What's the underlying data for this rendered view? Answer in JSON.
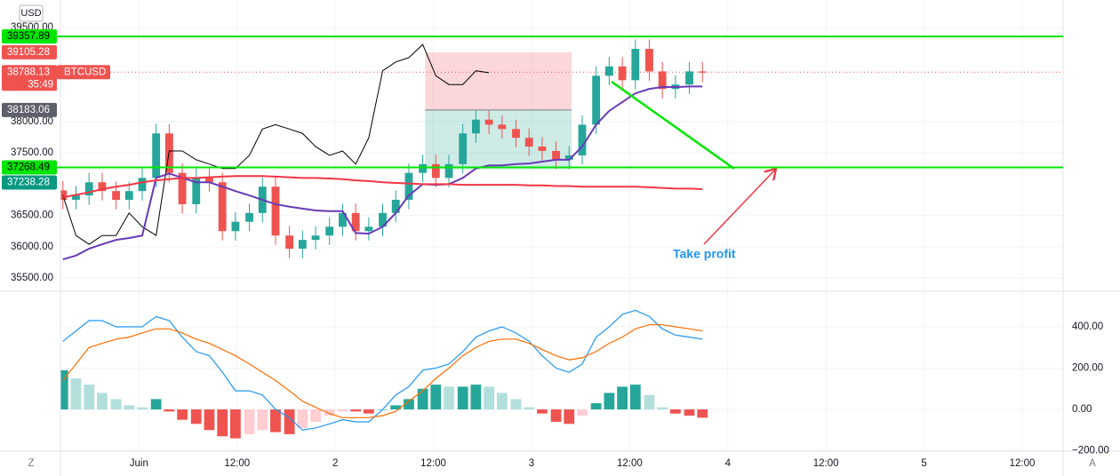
{
  "chart_data": [
    {
      "type": "candlestick",
      "currency_label": "USD",
      "symbol": "BTCUSD",
      "countdown": "35:49",
      "annotation": "Take profit",
      "buttons": [
        "Z",
        "A"
      ],
      "x": [
        -9.3,
        -7.7,
        -6.1,
        -4.5,
        -2.8,
        -1.2,
        0.4,
        2.1,
        3.7,
        5.3,
        7.0,
        8.6,
        10.2,
        11.8,
        13.5,
        15.1,
        16.7,
        18.4,
        20.0,
        21.6,
        23.3,
        24.9,
        26.5,
        28.1,
        29.8,
        31.4,
        33.0,
        34.7,
        36.3,
        37.9,
        39.6,
        41.2,
        42.8,
        44.4,
        46.1,
        47.7,
        49.3,
        51.0,
        52.6,
        54.2,
        55.9,
        57.5,
        59.1,
        60.7,
        62.4,
        64.0,
        65.6,
        67.3,
        68.9
      ],
      "open": [
        36900,
        36750,
        36820,
        37030,
        36890,
        36750,
        36890,
        37100,
        37810,
        37180,
        36680,
        37100,
        37030,
        36250,
        36400,
        36540,
        36960,
        36180,
        35970,
        36110,
        36180,
        36320,
        36540,
        36250,
        36320,
        36540,
        36750,
        37180,
        37320,
        37100,
        37320,
        37810,
        38030,
        37950,
        37880,
        37740,
        37600,
        37530,
        37390,
        37460,
        37950,
        38730,
        38880,
        38660,
        39160,
        38800,
        38520,
        38590,
        38800
      ],
      "high": [
        37050,
        36970,
        37180,
        37180,
        37040,
        37040,
        37250,
        37960,
        37960,
        37330,
        37250,
        37250,
        37180,
        36550,
        36690,
        37110,
        37110,
        36330,
        36260,
        36330,
        36470,
        36690,
        36690,
        36470,
        36690,
        36900,
        37330,
        37470,
        37470,
        37470,
        37960,
        38180,
        38180,
        38100,
        38030,
        37890,
        37750,
        37680,
        37610,
        38100,
        38880,
        39030,
        39030,
        39310,
        39310,
        38950,
        38740,
        38950,
        38950
      ],
      "low": [
        36600,
        36600,
        36670,
        36740,
        36600,
        36600,
        36740,
        36950,
        37030,
        36530,
        36530,
        36880,
        36100,
        36100,
        36250,
        36390,
        36030,
        35820,
        35820,
        35960,
        36030,
        36170,
        36100,
        36100,
        36170,
        36390,
        36600,
        37030,
        36950,
        36950,
        37170,
        37660,
        37800,
        37730,
        37590,
        37450,
        37380,
        37240,
        37240,
        37310,
        37800,
        38580,
        38510,
        38510,
        38650,
        38370,
        38370,
        38440,
        38630
      ],
      "close": [
        36750,
        36820,
        37030,
        36890,
        36750,
        36890,
        37100,
        37810,
        37180,
        36680,
        37100,
        37030,
        36250,
        36400,
        36540,
        36960,
        36180,
        35970,
        36110,
        36180,
        36320,
        36540,
        36250,
        36320,
        36540,
        36750,
        37180,
        37320,
        37100,
        37320,
        37810,
        38030,
        37950,
        37880,
        37740,
        37600,
        37530,
        37390,
        37460,
        37950,
        38730,
        38880,
        38660,
        39160,
        38800,
        38520,
        38590,
        38800,
        38780
      ],
      "up_color": "#26a69a",
      "down_color": "#ef5350",
      "overlays": [
        {
          "color": "#000000",
          "values": [
            36820,
            36180,
            36040,
            36180,
            36180,
            36540,
            36320,
            36180,
            37530,
            37530,
            37390,
            37320,
            37250,
            37250,
            37460,
            37880,
            37950,
            37880,
            37810,
            37600,
            37460,
            37530,
            37320,
            37740,
            38810,
            38950,
            39020,
            39230,
            38730,
            38590,
            38590,
            38810,
            38780,
            null,
            null,
            null,
            null,
            null,
            null,
            null,
            null,
            null,
            null,
            null,
            null,
            null,
            null,
            null,
            null
          ]
        },
        {
          "color": "#673ab7",
          "values": [
            35800,
            35860,
            35970,
            36040,
            36110,
            36140,
            36180,
            37100,
            37170,
            37100,
            37030,
            37030,
            36960,
            36890,
            36820,
            36750,
            36680,
            36640,
            36610,
            36580,
            36570,
            36570,
            36220,
            36210,
            36320,
            36540,
            36820,
            37000,
            36990,
            37000,
            37100,
            37250,
            37300,
            37300,
            37320,
            37330,
            37360,
            37390,
            37390,
            37600,
            37950,
            38170,
            38310,
            38450,
            38520,
            38550,
            38550,
            38560,
            38560
          ]
        },
        {
          "color": "#f23645",
          "values": [
            36790,
            36830,
            36870,
            36920,
            36960,
            36990,
            37030,
            37060,
            37080,
            37100,
            37100,
            37110,
            37120,
            37130,
            37130,
            37130,
            37120,
            37110,
            37100,
            37100,
            37090,
            37080,
            37060,
            37050,
            37030,
            37020,
            37010,
            37000,
            37000,
            37000,
            36990,
            36990,
            36990,
            36990,
            36990,
            36980,
            36980,
            36970,
            36970,
            36960,
            36960,
            36960,
            36960,
            36960,
            36950,
            36940,
            36930,
            36930,
            36920
          ]
        }
      ],
      "levels": [
        {
          "value": 39357.89,
          "color": "#00e600"
        },
        {
          "value": 37268.49,
          "color": "#00e600"
        }
      ],
      "current_price": 38788.13,
      "current_color": "#ef5350",
      "position": {
        "stop": 39105.28,
        "entry": 38183.06,
        "target": 37238.28,
        "x": [
          35.0,
          52.9
        ],
        "stop_color": "#ef5350",
        "entry_color": "#5d606b",
        "target_color": "#089981"
      },
      "xlim": [
        -9.6,
        113
      ],
      "xticks": [
        {
          "value": 0,
          "label": "Juin"
        },
        {
          "value": 12,
          "label": "12:00"
        },
        {
          "value": 24,
          "label": "2"
        },
        {
          "value": 36,
          "label": "12:00"
        },
        {
          "value": 48,
          "label": "3"
        },
        {
          "value": 60,
          "label": "12:00"
        },
        {
          "value": 72,
          "label": "4"
        },
        {
          "value": 84,
          "label": "12:00"
        },
        {
          "value": 96,
          "label": "5"
        },
        {
          "value": 108,
          "label": "12:00"
        }
      ],
      "ylim": [
        35290,
        39940
      ],
      "yticks": [
        {
          "value": 35500,
          "label": "35500.00"
        },
        {
          "value": 36000,
          "label": "36000.00"
        },
        {
          "value": 36500,
          "label": "36500.00"
        },
        {
          "value": 37500,
          "label": "37500.00"
        },
        {
          "value": 38000,
          "label": "38000.00"
        },
        {
          "value": 39500,
          "label": "39500.00"
        }
      ],
      "grid": true
    },
    {
      "type": "macd",
      "histogram": [
        190,
        150,
        120,
        80,
        50,
        20,
        10,
        50,
        -10,
        -50,
        -70,
        -100,
        -130,
        -140,
        -120,
        -100,
        -110,
        -120,
        -90,
        -60,
        -30,
        -10,
        -10,
        -20,
        0,
        20,
        50,
        100,
        120,
        110,
        110,
        120,
        110,
        80,
        50,
        10,
        -20,
        -60,
        -70,
        -30,
        30,
        80,
        110,
        120,
        70,
        10,
        -20,
        -30,
        -40
      ],
      "hist_colors": [
        "#26a69a",
        "#b2dfdb",
        "#ef5350",
        "#ffcdd2"
      ],
      "macd": {
        "color": "#2196f3",
        "values": [
          330,
          380,
          430,
          430,
          400,
          400,
          400,
          450,
          430,
          350,
          280,
          260,
          180,
          90,
          90,
          70,
          0,
          -40,
          -100,
          -90,
          -70,
          -50,
          -60,
          -60,
          0,
          70,
          110,
          190,
          200,
          220,
          280,
          350,
          380,
          400,
          370,
          330,
          260,
          200,
          180,
          220,
          350,
          400,
          460,
          480,
          450,
          390,
          360,
          350,
          340
        ]
      },
      "signal": {
        "color": "#ff6d00",
        "values": [
          140,
          220,
          300,
          320,
          340,
          350,
          370,
          390,
          390,
          370,
          340,
          320,
          290,
          260,
          220,
          180,
          140,
          90,
          40,
          10,
          -20,
          -40,
          -40,
          -40,
          -30,
          -10,
          40,
          90,
          150,
          200,
          260,
          300,
          330,
          340,
          340,
          320,
          290,
          260,
          240,
          250,
          280,
          320,
          350,
          390,
          410,
          410,
          400,
          390,
          380
        ]
      },
      "ylim": [
        -202,
        572
      ],
      "yticks": [
        {
          "value": 400,
          "label": "400.00"
        },
        {
          "value": 200,
          "label": "200.00"
        },
        {
          "value": 0,
          "label": "0.00"
        },
        {
          "value": -200,
          "label": "−200.00"
        }
      ],
      "grid": true
    }
  ]
}
